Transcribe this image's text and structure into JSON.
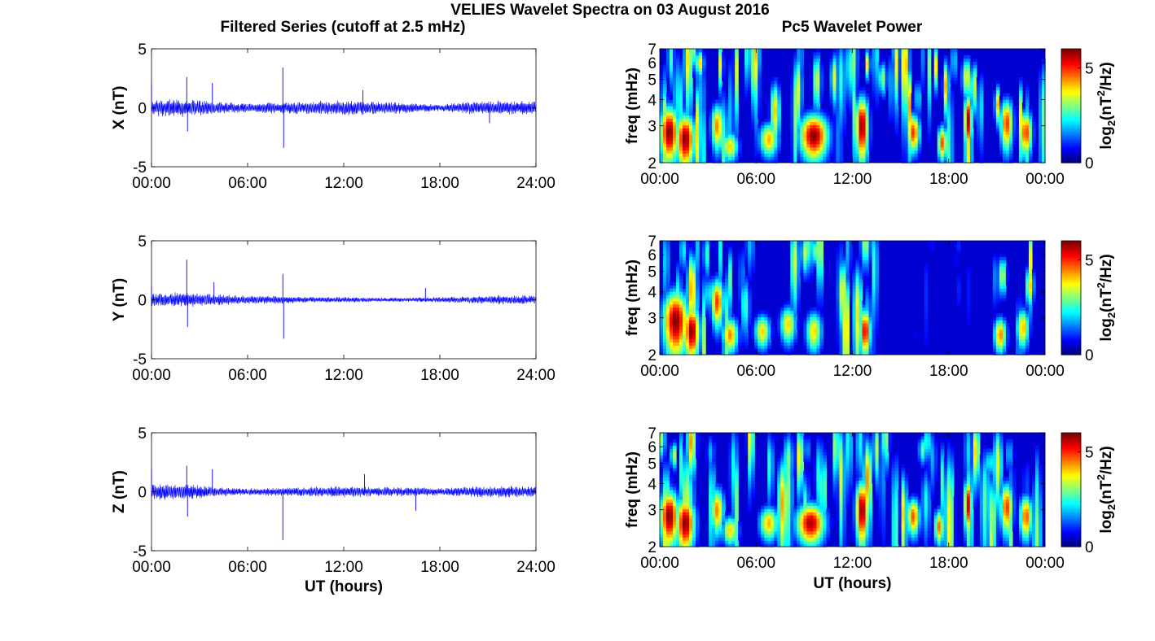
{
  "figure": {
    "title": "VELIES Wavelet Spectra on 03 August 2016",
    "left_column_title": "Filtered Series (cutoff at 2.5 mHz)",
    "right_column_title": "Pc5 Wavelet Power"
  },
  "colors": {
    "series_line": "#0000ff",
    "colormap": "jet",
    "axes": "#000000",
    "background": "#ffffff"
  },
  "chart_data": [
    {
      "type": "line",
      "panel": "X",
      "ylabel": "X (nT)",
      "xlabel": "",
      "x_ticks": [
        "00:00",
        "06:00",
        "12:00",
        "18:00",
        "24:00"
      ],
      "xlim_hours": [
        0,
        24
      ],
      "ylim": [
        -5,
        5
      ],
      "y_ticks": [
        "5",
        "0",
        "-5"
      ],
      "spikes": [
        {
          "t": 0.0,
          "v": 2.0
        },
        {
          "t": 2.2,
          "v": 2.6
        },
        {
          "t": 2.25,
          "v": -2.0
        },
        {
          "t": 3.8,
          "v": 2.1
        },
        {
          "t": 8.2,
          "v": 3.4
        },
        {
          "t": 8.25,
          "v": -3.4
        },
        {
          "t": 13.2,
          "v": 1.5
        },
        {
          "t": 21.1,
          "v": -1.3
        }
      ],
      "noise_envelope": [
        {
          "t": 0,
          "amp": 0.6
        },
        {
          "t": 2,
          "amp": 0.7
        },
        {
          "t": 4,
          "amp": 0.45
        },
        {
          "t": 6,
          "amp": 0.35
        },
        {
          "t": 8,
          "amp": 0.45
        },
        {
          "t": 10,
          "amp": 0.5
        },
        {
          "t": 12,
          "amp": 0.55
        },
        {
          "t": 14,
          "amp": 0.5
        },
        {
          "t": 16,
          "amp": 0.4
        },
        {
          "t": 18,
          "amp": 0.25
        },
        {
          "t": 20,
          "amp": 0.5
        },
        {
          "t": 22,
          "amp": 0.55
        },
        {
          "t": 24,
          "amp": 0.5
        }
      ]
    },
    {
      "type": "line",
      "panel": "Y",
      "ylabel": "Y (nT)",
      "xlabel": "",
      "x_ticks": [
        "00:00",
        "06:00",
        "12:00",
        "18:00",
        "24:00"
      ],
      "xlim_hours": [
        0,
        24
      ],
      "ylim": [
        -5,
        5
      ],
      "y_ticks": [
        "5",
        "0",
        "-5"
      ],
      "spikes": [
        {
          "t": 0.0,
          "v": 1.1
        },
        {
          "t": 2.2,
          "v": 3.4
        },
        {
          "t": 2.25,
          "v": -2.3
        },
        {
          "t": 3.9,
          "v": 1.5
        },
        {
          "t": 8.2,
          "v": 2.2
        },
        {
          "t": 8.25,
          "v": -3.3
        },
        {
          "t": 17.1,
          "v": 1.0
        }
      ],
      "noise_envelope": [
        {
          "t": 0,
          "amp": 0.5
        },
        {
          "t": 2,
          "amp": 0.55
        },
        {
          "t": 4,
          "amp": 0.4
        },
        {
          "t": 6,
          "amp": 0.3
        },
        {
          "t": 8,
          "amp": 0.3
        },
        {
          "t": 10,
          "amp": 0.2
        },
        {
          "t": 12,
          "amp": 0.2
        },
        {
          "t": 14,
          "amp": 0.15
        },
        {
          "t": 16,
          "amp": 0.15
        },
        {
          "t": 18,
          "amp": 0.2
        },
        {
          "t": 20,
          "amp": 0.25
        },
        {
          "t": 22,
          "amp": 0.35
        },
        {
          "t": 24,
          "amp": 0.3
        }
      ]
    },
    {
      "type": "line",
      "panel": "Z",
      "ylabel": "Z (nT)",
      "xlabel": "UT (hours)",
      "x_ticks": [
        "00:00",
        "06:00",
        "12:00",
        "18:00",
        "24:00"
      ],
      "xlim_hours": [
        0,
        24
      ],
      "ylim": [
        -5,
        5
      ],
      "y_ticks": [
        "5",
        "0",
        "-5"
      ],
      "spikes": [
        {
          "t": 0.0,
          "v": 1.8
        },
        {
          "t": 2.2,
          "v": 2.2
        },
        {
          "t": 2.25,
          "v": -2.1
        },
        {
          "t": 3.8,
          "v": 1.9
        },
        {
          "t": 8.2,
          "v": -4.1
        },
        {
          "t": 13.3,
          "v": 1.5
        },
        {
          "t": 16.5,
          "v": -1.6
        }
      ],
      "noise_envelope": [
        {
          "t": 0,
          "amp": 0.6
        },
        {
          "t": 2,
          "amp": 0.6
        },
        {
          "t": 4,
          "amp": 0.35
        },
        {
          "t": 6,
          "amp": 0.25
        },
        {
          "t": 8,
          "amp": 0.3
        },
        {
          "t": 10,
          "amp": 0.35
        },
        {
          "t": 12,
          "amp": 0.45
        },
        {
          "t": 14,
          "amp": 0.35
        },
        {
          "t": 16,
          "amp": 0.35
        },
        {
          "t": 18,
          "amp": 0.25
        },
        {
          "t": 20,
          "amp": 0.4
        },
        {
          "t": 22,
          "amp": 0.45
        },
        {
          "t": 24,
          "amp": 0.4
        }
      ]
    },
    {
      "type": "heatmap",
      "panel": "X",
      "ylabel": "freq (mHz)",
      "xlabel": "",
      "x_ticks": [
        "00:00",
        "06:00",
        "12:00",
        "18:00",
        "00:00"
      ],
      "xlim_hours": [
        0,
        24
      ],
      "ylim_mHz": [
        2,
        7
      ],
      "y_scale": "log",
      "y_ticks": [
        "2",
        "3",
        "4",
        "5",
        "6",
        "7"
      ],
      "colorbar": {
        "label": "log2(nT²/Hz)",
        "ticks": [
          "0",
          "5"
        ],
        "range": [
          0,
          6
        ]
      },
      "blobs": [
        {
          "t": 0.6,
          "f": 2.8,
          "p": 6.0,
          "wt": 0.6,
          "wf": 0.9
        },
        {
          "t": 1.6,
          "f": 2.6,
          "p": 6.0,
          "wt": 0.6,
          "wf": 0.8
        },
        {
          "t": 3.6,
          "f": 3.0,
          "p": 4.5,
          "wt": 0.4,
          "wf": 0.8
        },
        {
          "t": 4.4,
          "f": 2.4,
          "p": 4.0,
          "wt": 0.5,
          "wf": 0.4
        },
        {
          "t": 6.8,
          "f": 2.6,
          "p": 4.2,
          "wt": 0.6,
          "wf": 0.5
        },
        {
          "t": 9.6,
          "f": 2.7,
          "p": 6.0,
          "wt": 0.9,
          "wf": 0.7
        },
        {
          "t": 12.6,
          "f": 3.0,
          "p": 6.0,
          "wt": 0.4,
          "wf": 1.1
        },
        {
          "t": 15.8,
          "f": 2.8,
          "p": 5.0,
          "wt": 0.4,
          "wf": 0.6
        },
        {
          "t": 17.6,
          "f": 2.5,
          "p": 4.8,
          "wt": 0.3,
          "wf": 0.5
        },
        {
          "t": 19.2,
          "f": 3.2,
          "p": 5.8,
          "wt": 0.25,
          "wf": 1.0
        },
        {
          "t": 21.6,
          "f": 3.1,
          "p": 5.0,
          "wt": 0.4,
          "wf": 0.9
        },
        {
          "t": 22.8,
          "f": 2.8,
          "p": 5.0,
          "wt": 0.4,
          "wf": 0.7
        }
      ],
      "quiet_intervals": []
    },
    {
      "type": "heatmap",
      "panel": "Y",
      "ylabel": "freq (mHz)",
      "xlabel": "",
      "x_ticks": [
        "00:00",
        "06:00",
        "12:00",
        "18:00",
        "00:00"
      ],
      "xlim_hours": [
        0,
        24
      ],
      "ylim_mHz": [
        2,
        7
      ],
      "y_scale": "log",
      "y_ticks": [
        "2",
        "3",
        "4",
        "5",
        "6",
        "7"
      ],
      "colorbar": {
        "label": "log2(nT²/Hz)",
        "ticks": [
          "0",
          "5"
        ],
        "range": [
          0,
          6
        ]
      },
      "blobs": [
        {
          "t": 1.0,
          "f": 2.9,
          "p": 6.0,
          "wt": 0.8,
          "wf": 1.1
        },
        {
          "t": 2.0,
          "f": 2.6,
          "p": 6.0,
          "wt": 0.5,
          "wf": 0.8
        },
        {
          "t": 3.6,
          "f": 3.6,
          "p": 5.0,
          "wt": 0.4,
          "wf": 1.0
        },
        {
          "t": 4.4,
          "f": 2.5,
          "p": 4.5,
          "wt": 0.5,
          "wf": 0.5
        },
        {
          "t": 6.4,
          "f": 2.6,
          "p": 4.0,
          "wt": 0.5,
          "wf": 0.5
        },
        {
          "t": 8.0,
          "f": 2.8,
          "p": 4.0,
          "wt": 0.5,
          "wf": 0.6
        },
        {
          "t": 9.6,
          "f": 2.6,
          "p": 4.0,
          "wt": 0.5,
          "wf": 0.6
        },
        {
          "t": 12.8,
          "f": 2.6,
          "p": 5.5,
          "wt": 0.35,
          "wf": 0.7
        },
        {
          "t": 16.0,
          "f": 2.5,
          "p": 3.0,
          "wt": 0.4,
          "wf": 0.4
        },
        {
          "t": 21.2,
          "f": 2.5,
          "p": 4.5,
          "wt": 0.4,
          "wf": 0.5
        },
        {
          "t": 22.6,
          "f": 2.7,
          "p": 4.2,
          "wt": 0.4,
          "wf": 0.6
        }
      ],
      "quiet_intervals": [
        {
          "start": 13.6,
          "end": 20.4
        }
      ]
    },
    {
      "type": "heatmap",
      "panel": "Z",
      "ylabel": "freq (mHz)",
      "xlabel": "UT (hours)",
      "x_ticks": [
        "00:00",
        "06:00",
        "12:00",
        "18:00",
        "00:00"
      ],
      "xlim_hours": [
        0,
        24
      ],
      "ylim_mHz": [
        2,
        7
      ],
      "y_scale": "log",
      "y_ticks": [
        "2",
        "3",
        "4",
        "5",
        "6",
        "7"
      ],
      "colorbar": {
        "label": "log2(nT²/Hz)",
        "ticks": [
          "0",
          "5"
        ],
        "range": [
          0,
          6
        ]
      },
      "blobs": [
        {
          "t": 0.6,
          "f": 2.8,
          "p": 6.0,
          "wt": 0.6,
          "wf": 0.9
        },
        {
          "t": 1.6,
          "f": 2.6,
          "p": 6.0,
          "wt": 0.6,
          "wf": 0.8
        },
        {
          "t": 3.6,
          "f": 3.0,
          "p": 4.5,
          "wt": 0.4,
          "wf": 0.8
        },
        {
          "t": 4.4,
          "f": 2.4,
          "p": 4.0,
          "wt": 0.5,
          "wf": 0.4
        },
        {
          "t": 6.8,
          "f": 2.6,
          "p": 4.2,
          "wt": 0.6,
          "wf": 0.5
        },
        {
          "t": 9.4,
          "f": 2.6,
          "p": 5.8,
          "wt": 0.9,
          "wf": 0.6
        },
        {
          "t": 12.6,
          "f": 3.0,
          "p": 6.0,
          "wt": 0.4,
          "wf": 1.1
        },
        {
          "t": 15.8,
          "f": 2.8,
          "p": 4.8,
          "wt": 0.4,
          "wf": 0.6
        },
        {
          "t": 17.4,
          "f": 2.5,
          "p": 4.6,
          "wt": 0.3,
          "wf": 0.5
        },
        {
          "t": 19.2,
          "f": 3.2,
          "p": 5.6,
          "wt": 0.25,
          "wf": 1.0
        },
        {
          "t": 21.6,
          "f": 3.1,
          "p": 5.0,
          "wt": 0.4,
          "wf": 0.9
        },
        {
          "t": 22.8,
          "f": 2.8,
          "p": 4.8,
          "wt": 0.4,
          "wf": 0.7
        }
      ],
      "quiet_intervals": []
    }
  ]
}
